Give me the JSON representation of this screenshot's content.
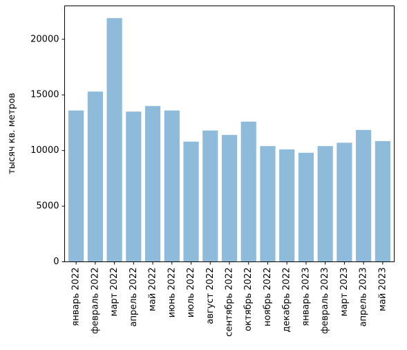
{
  "chart_data": {
    "type": "bar",
    "categories": [
      "январь 2022",
      "февраль 2022",
      "март 2022",
      "апрель 2022",
      "май 2022",
      "июнь 2022",
      "июль 2022",
      "август 2022",
      "сентябрь 2022",
      "октябрь 2022",
      "ноябрь 2022",
      "декабрь 2022",
      "январь 2023",
      "февраль 2023",
      "март 2023",
      "апрель 2023",
      "май 2023"
    ],
    "values": [
      13600,
      15300,
      21900,
      13500,
      14000,
      13600,
      10800,
      11800,
      11400,
      12600,
      10400,
      10100,
      9800,
      10400,
      10700,
      11850,
      10850
    ],
    "title": "",
    "xlabel": "",
    "ylabel": "тысяч кв. метров",
    "ylim": [
      0,
      23000
    ],
    "yticks": [
      0,
      5000,
      10000,
      15000,
      20000
    ],
    "ytick_labels": [
      "0",
      "5000",
      "10000",
      "15000",
      "20000"
    ],
    "grid": false,
    "bar_color": "#8fbbda"
  }
}
